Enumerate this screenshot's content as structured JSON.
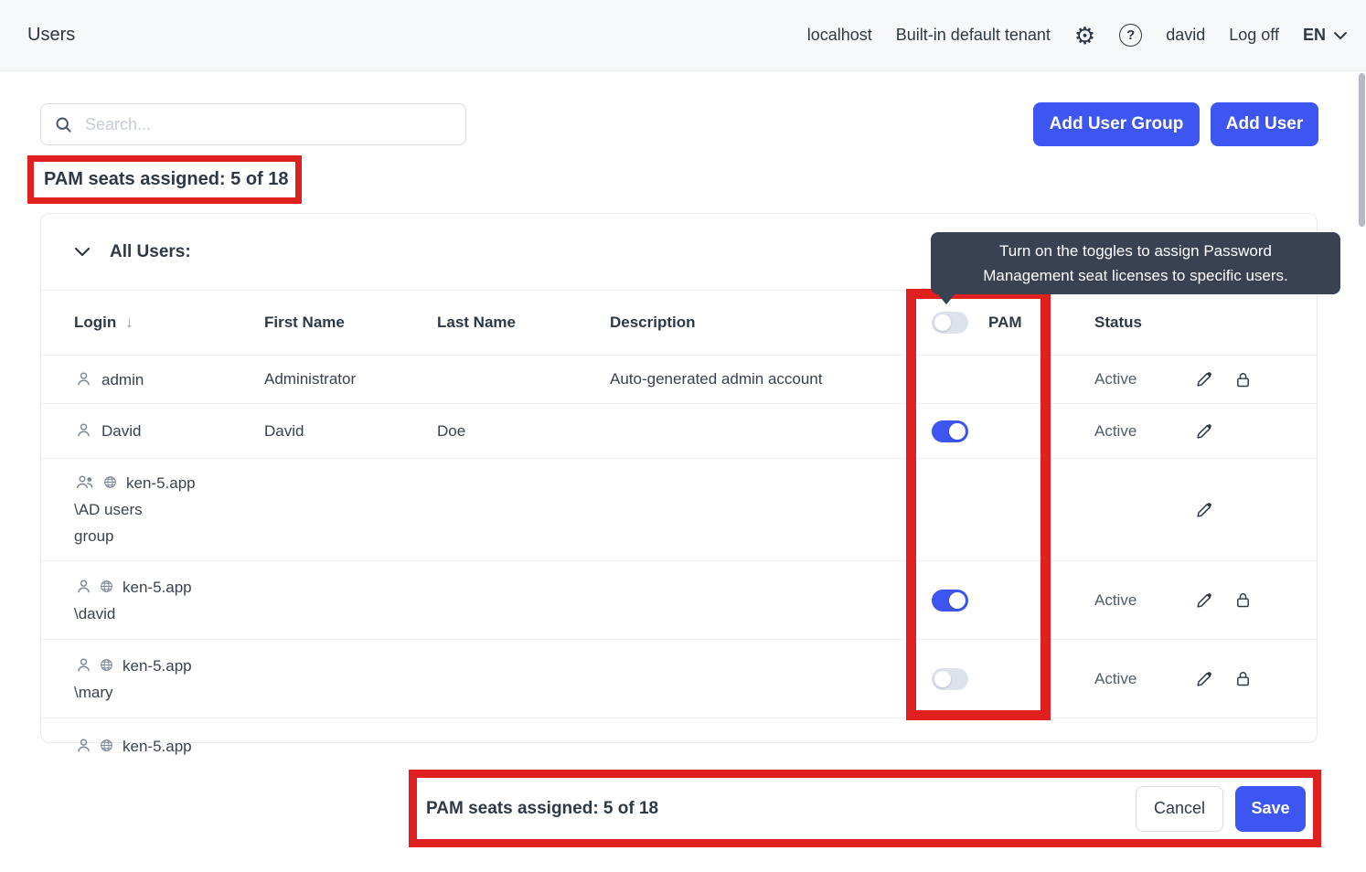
{
  "topbar": {
    "title": "Users",
    "host": "localhost",
    "tenant": "Built-in default tenant",
    "user": "david",
    "logoff": "Log off",
    "lang": "EN"
  },
  "toolbar": {
    "search_placeholder": "Search...",
    "add_user_group": "Add User Group",
    "add_user": "Add User"
  },
  "pam_banner": {
    "text": "PAM seats assigned: 5 of 18"
  },
  "tooltip": {
    "line1": "Turn on the toggles to assign Password",
    "line2": "Management seat licenses to specific users."
  },
  "table": {
    "section_title": "All Users:",
    "columns": {
      "login": "Login",
      "first": "First Name",
      "last": "Last Name",
      "desc": "Description",
      "pam": "PAM",
      "status": "Status"
    },
    "header_toggle": "off",
    "rows": [
      {
        "icon": "user",
        "login": "admin",
        "first": "Administrator",
        "last": "",
        "desc": "Auto-generated admin account",
        "toggle": "none",
        "status": "Active",
        "edit": true,
        "lock": true,
        "partial": false
      },
      {
        "icon": "user",
        "login": "David",
        "first": "David",
        "last": "Doe",
        "desc": "",
        "toggle": "on",
        "status": "Active",
        "edit": true,
        "lock": false,
        "partial": false
      },
      {
        "icon": "group-globe",
        "login": "ken-5.app\n\\AD users\ngroup",
        "first": "",
        "last": "",
        "desc": "",
        "toggle": "none",
        "status": "",
        "edit": true,
        "lock": false,
        "partial": false
      },
      {
        "icon": "user-globe",
        "login": "ken-5.app\n\\david",
        "first": "",
        "last": "",
        "desc": "",
        "toggle": "on",
        "status": "Active",
        "edit": true,
        "lock": true,
        "partial": false
      },
      {
        "icon": "user-globe",
        "login": "ken-5.app\n\\mary",
        "first": "",
        "last": "",
        "desc": "",
        "toggle": "off",
        "status": "Active",
        "edit": true,
        "lock": true,
        "partial": false
      },
      {
        "icon": "user-globe",
        "login": "ken-5.app",
        "first": "",
        "last": "",
        "desc": "",
        "toggle": "none",
        "status": "",
        "edit": false,
        "lock": false,
        "partial": true
      }
    ]
  },
  "footer": {
    "text": "PAM seats assigned: 5 of 18",
    "cancel": "Cancel",
    "save": "Save"
  },
  "colors": {
    "accent": "#3d56f1",
    "annotation_red": "#e01f1f",
    "tooltip_bg": "#394252",
    "toggle_off": "#dde2ec"
  }
}
